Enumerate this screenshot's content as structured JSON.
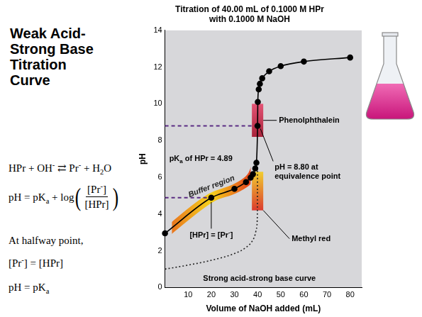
{
  "slide": {
    "heading": "Weak Acid-Strong Base Titration Curve",
    "notes": [
      {
        "runs": [
          "HPr + OH",
          {
            "sup": "-"
          },
          " ⇄ Pr",
          {
            "sup": "-"
          },
          " + H",
          {
            "sub": "2"
          },
          "O"
        ]
      },
      {
        "before": [
          "pH = pK",
          {
            "sub": "a"
          },
          " + log"
        ],
        "open": "(",
        "numerator": [
          "[Pr",
          {
            "sup": "-"
          },
          "]"
        ],
        "denominator": [
          "[HPr]"
        ],
        "close": ")"
      },
      {
        "runs": [
          "At halfway point,"
        ]
      },
      {
        "runs": [
          "[Pr",
          {
            "sup": "-"
          },
          "] = [HPr]"
        ]
      },
      {
        "runs": [
          "pH = pK",
          {
            "sub": "a"
          }
        ]
      }
    ]
  },
  "chart_data": {
    "type": "line",
    "title": "Titration of 40.00 mL of 0.1000 M HPr with 0.1000 M NaOH",
    "x_label": "Volume of NaOH added (mL)",
    "y_label": "pH",
    "xlim": [
      0,
      85
    ],
    "xticks": [
      10,
      20,
      30,
      40,
      50,
      60,
      70,
      80
    ],
    "ylim": [
      0,
      14
    ],
    "yticks": [
      0,
      2,
      4,
      6,
      8,
      10,
      12,
      14
    ],
    "grid": false,
    "series": [
      {
        "color": "#000000",
        "marker": "circle",
        "line_style": "solid",
        "x": [
          0,
          20,
          30,
          35,
          37,
          38,
          39,
          39.5,
          40,
          40.1,
          40.5,
          41,
          42,
          45,
          50,
          60,
          80
        ],
        "values": [
          2.95,
          4.89,
          5.37,
          5.74,
          5.98,
          6.17,
          6.48,
          6.79,
          8.8,
          10.1,
          10.79,
          11.09,
          11.39,
          11.77,
          12.05,
          12.3,
          12.52
        ]
      },
      {
        "name": "Strong acid-strong base curve",
        "color": "#222222",
        "marker": "none",
        "line_style": "dotted",
        "x": [
          0,
          10,
          20,
          30,
          35,
          38,
          39,
          39.5,
          39.9,
          40
        ],
        "values": [
          1.0,
          1.22,
          1.48,
          1.85,
          2.18,
          2.59,
          2.9,
          3.2,
          3.9,
          7.0
        ]
      }
    ],
    "annotations": {
      "pka": {
        "value": 4.89,
        "label": [
          "pK",
          {
            "sub": "a"
          },
          " of HPr = 4.89"
        ],
        "color": "#5b2c83"
      },
      "half_point": {
        "x": 20,
        "label": [
          "[HPr] = [Pr",
          {
            "sup": "-"
          },
          "]"
        ]
      },
      "equivalence": {
        "x": 40,
        "value": 8.8,
        "label": "pH = 8.80 at equivalence point",
        "color": "#5b2c83"
      },
      "buffer_region": {
        "label": "Buffer region",
        "range": [
          3,
          37
        ],
        "colors": [
          "#e8761e",
          "#f6d31c",
          "#e4421c"
        ]
      },
      "indicators": [
        {
          "label": "Phenolphthalein",
          "range": [
            8.2,
            10.0
          ],
          "colors": [
            "#a30f28",
            "#e5456a"
          ]
        },
        {
          "label": "Methyl red",
          "range": [
            4.2,
            6.3
          ],
          "colors": [
            "#dc2a1c",
            "#f4cd1c"
          ]
        }
      ]
    }
  }
}
